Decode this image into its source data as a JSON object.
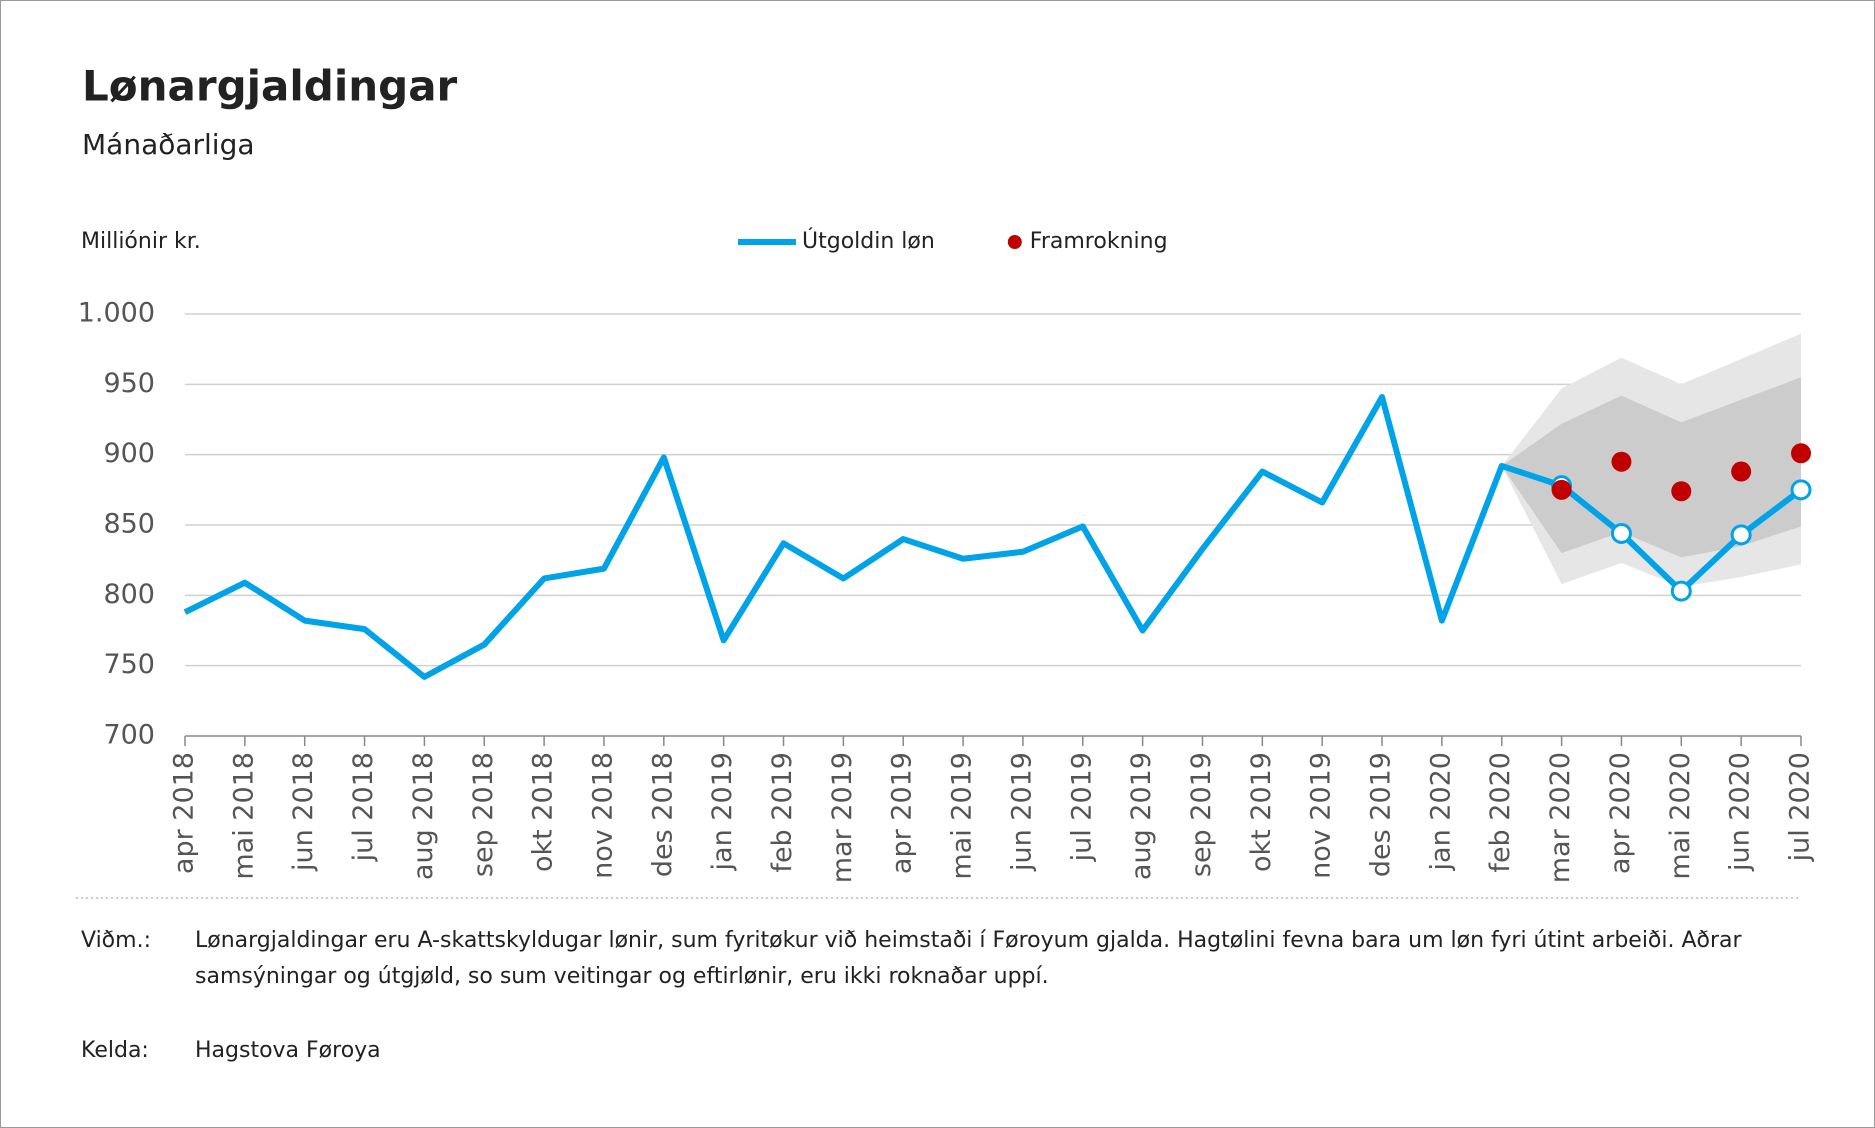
{
  "chart_data": {
    "type": "line",
    "title": "Lønargjaldingar",
    "subtitle": "Mánaðarliga",
    "y_label": "Milliónir kr.",
    "categories": [
      "apr 2018",
      "mai 2018",
      "jun 2018",
      "jul 2018",
      "aug 2018",
      "sep 2018",
      "okt 2018",
      "nov 2018",
      "des 2018",
      "jan 2019",
      "feb 2019",
      "mar 2019",
      "apr 2019",
      "mai 2019",
      "jun 2019",
      "jul 2019",
      "aug 2019",
      "sep 2019",
      "okt 2019",
      "nov 2019",
      "des 2019",
      "jan 2020",
      "feb 2020",
      "mar 2020",
      "apr 2020",
      "mai 2020",
      "jun 2020",
      "jul 2020"
    ],
    "series": [
      {
        "name": "Útgoldin løn",
        "color": "#00a3e8",
        "style": "line",
        "values": [
          788,
          809,
          782,
          776,
          742,
          765,
          812,
          819,
          898,
          768,
          837,
          812,
          840,
          826,
          831,
          849,
          775,
          833,
          888,
          866,
          941,
          782,
          892,
          878,
          844,
          803,
          843,
          875
        ]
      },
      {
        "name": "Framrokning",
        "color": "#c00000",
        "style": "dot",
        "values": [
          null,
          null,
          null,
          null,
          null,
          null,
          null,
          null,
          null,
          null,
          null,
          null,
          null,
          null,
          null,
          null,
          null,
          null,
          null,
          null,
          null,
          null,
          null,
          875,
          895,
          874,
          888,
          901
        ]
      }
    ],
    "bands": [
      {
        "color": "#e6e6e6",
        "upper": [
          null,
          null,
          null,
          null,
          null,
          null,
          null,
          null,
          null,
          null,
          null,
          null,
          null,
          null,
          null,
          null,
          null,
          null,
          null,
          null,
          null,
          null,
          null,
          947,
          969,
          950,
          968,
          986
        ],
        "lower": [
          null,
          null,
          null,
          null,
          null,
          null,
          null,
          null,
          null,
          null,
          null,
          null,
          null,
          null,
          null,
          null,
          null,
          null,
          null,
          null,
          null,
          null,
          null,
          808,
          823,
          806,
          813,
          822
        ]
      },
      {
        "color": "#cccccc",
        "upper": [
          null,
          null,
          null,
          null,
          null,
          null,
          null,
          null,
          null,
          null,
          null,
          null,
          null,
          null,
          null,
          null,
          null,
          null,
          null,
          null,
          null,
          null,
          null,
          922,
          942,
          923,
          939,
          955
        ],
        "lower": [
          null,
          null,
          null,
          null,
          null,
          null,
          null,
          null,
          null,
          null,
          null,
          null,
          null,
          null,
          null,
          null,
          null,
          null,
          null,
          null,
          null,
          null,
          null,
          830,
          845,
          827,
          835,
          849
        ]
      }
    ],
    "ylim": [
      700,
      1000
    ],
    "yticks": [
      700,
      750,
      800,
      850,
      900,
      950,
      {
        "value": 1000,
        "label": "1.000"
      }
    ],
    "grid": true
  },
  "notes": [
    {
      "label": "Viðm.:",
      "text": "Lønargjaldingar eru A-skattskyldugar lønir, sum fyritøkur við heimstaði í Føroyum gjalda. Hagtølini fevna bara um løn fyri útint arbeiði. Aðrar samsýningar og útgjøld, so sum veitingar og eftirlønir, eru ikki roknaðar uppí."
    },
    {
      "label": "Kelda:",
      "text": "Hagstova Føroya"
    }
  ]
}
